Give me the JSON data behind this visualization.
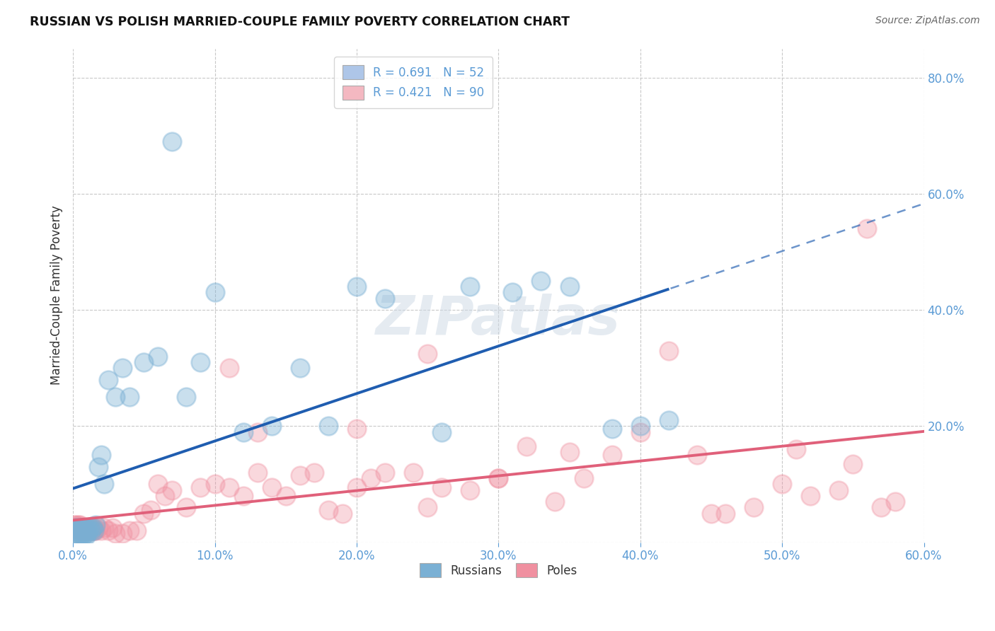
{
  "title": "RUSSIAN VS POLISH MARRIED-COUPLE FAMILY POVERTY CORRELATION CHART",
  "source": "Source: ZipAtlas.com",
  "ylabel": "Married-Couple Family Poverty",
  "xlim": [
    0.0,
    0.6
  ],
  "ylim": [
    0.0,
    0.85
  ],
  "xticks": [
    0.0,
    0.1,
    0.2,
    0.3,
    0.4,
    0.5,
    0.6
  ],
  "xtick_labels": [
    "0.0%",
    "10.0%",
    "20.0%",
    "30.0%",
    "40.0%",
    "50.0%",
    "60.0%"
  ],
  "ytick_positions": [
    0.0,
    0.2,
    0.4,
    0.6,
    0.8
  ],
  "ytick_labels": [
    "",
    "20.0%",
    "40.0%",
    "60.0%",
    "80.0%"
  ],
  "legend_entries": [
    {
      "label": "R = 0.691   N = 52",
      "facecolor": "#aec6e8"
    },
    {
      "label": "R = 0.421   N = 90",
      "facecolor": "#f4b8c1"
    }
  ],
  "russian_color": "#7ab0d4",
  "polish_color": "#f090a0",
  "russian_line_color": "#1f5db0",
  "polish_line_color": "#e0607a",
  "watermark": "ZIPatlas",
  "background_color": "#ffffff",
  "grid_color": "#c8c8c8",
  "tick_color": "#5b9bd5",
  "russians_x": [
    0.001,
    0.002,
    0.002,
    0.003,
    0.003,
    0.004,
    0.004,
    0.005,
    0.005,
    0.006,
    0.006,
    0.007,
    0.007,
    0.008,
    0.008,
    0.009,
    0.009,
    0.01,
    0.01,
    0.011,
    0.012,
    0.013,
    0.014,
    0.015,
    0.016,
    0.018,
    0.02,
    0.022,
    0.025,
    0.03,
    0.035,
    0.04,
    0.05,
    0.06,
    0.07,
    0.08,
    0.09,
    0.1,
    0.12,
    0.14,
    0.16,
    0.18,
    0.2,
    0.22,
    0.26,
    0.28,
    0.31,
    0.33,
    0.35,
    0.38,
    0.4,
    0.42
  ],
  "russians_y": [
    0.02,
    0.015,
    0.025,
    0.01,
    0.02,
    0.015,
    0.025,
    0.01,
    0.02,
    0.015,
    0.025,
    0.01,
    0.02,
    0.015,
    0.025,
    0.01,
    0.02,
    0.015,
    0.025,
    0.02,
    0.025,
    0.02,
    0.025,
    0.02,
    0.03,
    0.13,
    0.15,
    0.1,
    0.28,
    0.25,
    0.3,
    0.25,
    0.31,
    0.32,
    0.69,
    0.25,
    0.31,
    0.43,
    0.19,
    0.2,
    0.3,
    0.2,
    0.44,
    0.42,
    0.19,
    0.44,
    0.43,
    0.45,
    0.44,
    0.195,
    0.2,
    0.21
  ],
  "poles_x": [
    0.001,
    0.001,
    0.002,
    0.002,
    0.003,
    0.003,
    0.004,
    0.004,
    0.005,
    0.005,
    0.005,
    0.006,
    0.006,
    0.007,
    0.007,
    0.008,
    0.008,
    0.009,
    0.009,
    0.01,
    0.01,
    0.011,
    0.011,
    0.012,
    0.012,
    0.013,
    0.013,
    0.014,
    0.014,
    0.015,
    0.015,
    0.016,
    0.018,
    0.02,
    0.022,
    0.025,
    0.028,
    0.03,
    0.035,
    0.04,
    0.045,
    0.05,
    0.055,
    0.06,
    0.065,
    0.07,
    0.08,
    0.09,
    0.1,
    0.11,
    0.12,
    0.13,
    0.14,
    0.15,
    0.16,
    0.17,
    0.18,
    0.19,
    0.2,
    0.21,
    0.22,
    0.24,
    0.25,
    0.26,
    0.28,
    0.3,
    0.32,
    0.34,
    0.36,
    0.38,
    0.4,
    0.42,
    0.44,
    0.45,
    0.46,
    0.48,
    0.5,
    0.51,
    0.52,
    0.54,
    0.55,
    0.56,
    0.57,
    0.58,
    0.11,
    0.13,
    0.2,
    0.25,
    0.3,
    0.35
  ],
  "poles_y": [
    0.025,
    0.03,
    0.025,
    0.03,
    0.02,
    0.025,
    0.025,
    0.03,
    0.02,
    0.025,
    0.03,
    0.02,
    0.025,
    0.02,
    0.025,
    0.02,
    0.025,
    0.02,
    0.025,
    0.02,
    0.025,
    0.02,
    0.025,
    0.02,
    0.025,
    0.02,
    0.025,
    0.02,
    0.025,
    0.02,
    0.025,
    0.02,
    0.025,
    0.02,
    0.025,
    0.02,
    0.025,
    0.015,
    0.015,
    0.02,
    0.02,
    0.05,
    0.055,
    0.1,
    0.08,
    0.09,
    0.06,
    0.095,
    0.1,
    0.095,
    0.08,
    0.12,
    0.095,
    0.08,
    0.115,
    0.12,
    0.055,
    0.05,
    0.095,
    0.11,
    0.12,
    0.12,
    0.06,
    0.095,
    0.09,
    0.11,
    0.165,
    0.07,
    0.11,
    0.15,
    0.19,
    0.33,
    0.15,
    0.05,
    0.05,
    0.06,
    0.1,
    0.16,
    0.08,
    0.09,
    0.135,
    0.54,
    0.06,
    0.07,
    0.3,
    0.19,
    0.195,
    0.325,
    0.11,
    0.155
  ]
}
